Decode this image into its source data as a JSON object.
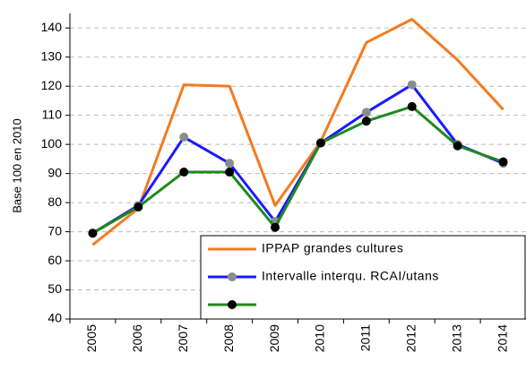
{
  "chart_data": {
    "type": "line",
    "y_label": "Base 100 en 2010",
    "categories": [
      "2005",
      "2006",
      "2007",
      "2008",
      "2009",
      "2010",
      "2011",
      "2012",
      "2013",
      "2014"
    ],
    "series": [
      {
        "name": "IPPAP grandes cultures",
        "color": "#f57a1f",
        "values": [
          65.5,
          78,
          120.5,
          120,
          79,
          101,
          135,
          143,
          129,
          112
        ]
      },
      {
        "name": "Intervalle interqu. RCAI/utans",
        "color": "#1a1aff",
        "marker_color": "#8c8c8c",
        "values": [
          69.5,
          79,
          102.5,
          93.5,
          73.5,
          100.5,
          111,
          120.5,
          100,
          93.5
        ]
      },
      {
        "color": "#1e8a1e",
        "marker_color": "#000000",
        "values": [
          69.5,
          78.5,
          90.5,
          90.5,
          71.5,
          100.5,
          108,
          113,
          99.5,
          94
        ]
      }
    ],
    "ylim": [
      40,
      145
    ],
    "yticks": [
      40,
      50,
      60,
      70,
      80,
      90,
      100,
      110,
      120,
      130,
      140
    ],
    "grid": true,
    "legend": "lower right"
  }
}
